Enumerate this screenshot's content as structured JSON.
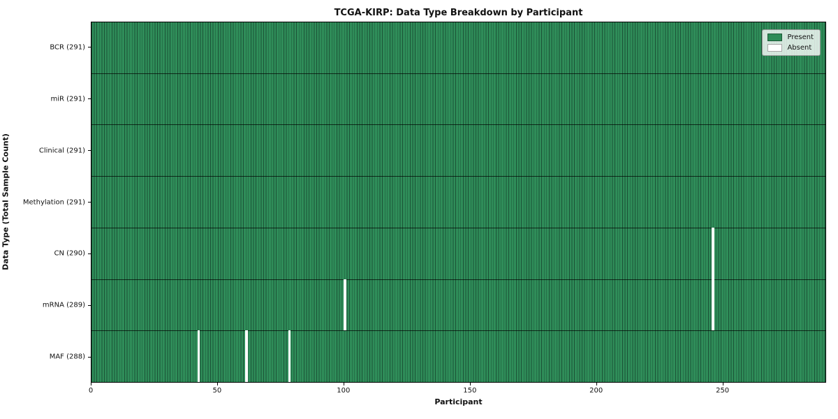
{
  "chart_data": {
    "type": "heatmap",
    "title": "TCGA-KIRP: Data Type Breakdown by Participant",
    "xlabel": "Participant",
    "ylabel": "Data Type (Total Sample Count)",
    "n_participants": 291,
    "x_range": [
      0,
      291
    ],
    "x_ticks": [
      0,
      50,
      100,
      150,
      200,
      250
    ],
    "legend_position": "upper right",
    "grid": "row-dividers",
    "legend": [
      {
        "label": "Present",
        "color": "#2e8b57"
      },
      {
        "label": "Absent",
        "color": "#ffffff"
      }
    ],
    "colors": {
      "present_fill": "#2f8d59",
      "present_edge": "#1b5236",
      "absent_fill": "#ffffff",
      "row_divider": "#1a1a1a",
      "plot_border": "#000000"
    },
    "rows": [
      {
        "label": "BCR (291)",
        "data_type": "BCR",
        "present_count": 291,
        "absent_participants": []
      },
      {
        "label": "miR (291)",
        "data_type": "miR",
        "present_count": 291,
        "absent_participants": []
      },
      {
        "label": "Clinical (291)",
        "data_type": "Clinical",
        "present_count": 291,
        "absent_participants": []
      },
      {
        "label": "Methylation (291)",
        "data_type": "Methylation",
        "present_count": 291,
        "absent_participants": []
      },
      {
        "label": "CN (290)",
        "data_type": "CN",
        "present_count": 290,
        "absent_participants": [
          246
        ]
      },
      {
        "label": "mRNA (289)",
        "data_type": "mRNA",
        "present_count": 289,
        "absent_participants": [
          100,
          246
        ]
      },
      {
        "label": "MAF (288)",
        "data_type": "MAF",
        "present_count": 288,
        "absent_participants": [
          42,
          61,
          78
        ]
      }
    ]
  }
}
